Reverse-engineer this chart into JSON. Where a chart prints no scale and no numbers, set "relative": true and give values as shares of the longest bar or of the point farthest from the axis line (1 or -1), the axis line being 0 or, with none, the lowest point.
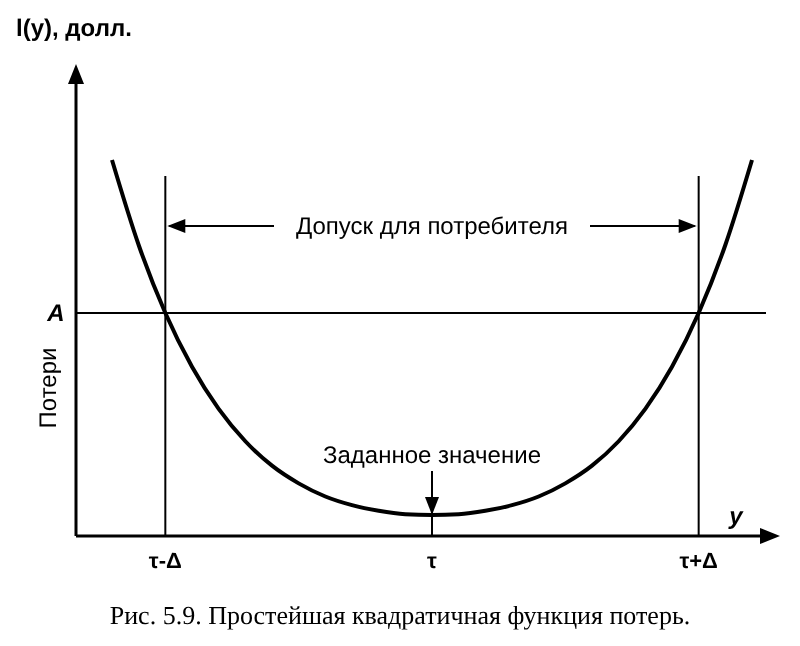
{
  "chart_data": {
    "type": "line",
    "relative": true,
    "categories": [
      null,
      null,
      "τ-Δ",
      null,
      null,
      null,
      null,
      null,
      null,
      null,
      null,
      null,
      "τ",
      null,
      null,
      null,
      null,
      null,
      null,
      null,
      null,
      null,
      "τ+Δ",
      null,
      null
    ],
    "series": [
      {
        "color": "#000000",
        "values": [
          1,
          0.774,
          0.593,
          0.45,
          0.338,
          0.252,
          0.187,
          0.14,
          0.105,
          0.082,
          0.067,
          0.058,
          0.056,
          0.058,
          0.067,
          0.082,
          0.105,
          0.14,
          0.187,
          0.252,
          0.338,
          0.45,
          0.593,
          0.774,
          1
        ]
      }
    ],
    "xlabel": "y",
    "ylabel": "Потери",
    "ref_lines": [
      {
        "axis": "x",
        "value": "τ-Δ"
      },
      {
        "axis": "x",
        "value": "τ+Δ"
      },
      {
        "axis": "y",
        "value": 0.593,
        "label": "A"
      }
    ],
    "annotations": [
      "l(y), долл.",
      "Допуск для потребителя",
      {
        "text": "Заданное значение",
        "x": "τ",
        "y": 0.056
      },
      "Рис. 5.9. Простейшая квадратичная функция потерь."
    ]
  }
}
